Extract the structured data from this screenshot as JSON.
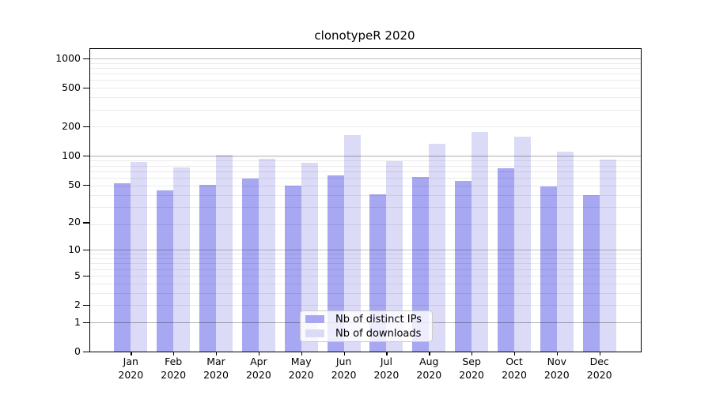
{
  "title": "clonotypeR 2020",
  "chart_data": {
    "type": "bar",
    "title": "clonotypeR 2020",
    "categories": [
      "Jan",
      "Feb",
      "Mar",
      "Apr",
      "May",
      "Jun",
      "Jul",
      "Aug",
      "Sep",
      "Oct",
      "Nov",
      "Dec"
    ],
    "category_year": "2020",
    "series": [
      {
        "name": "Nb of distinct IPs",
        "color": "#a7a7f2",
        "values": [
          52,
          44,
          50,
          58,
          49,
          62,
          40,
          60,
          55,
          74,
          48,
          39
        ]
      },
      {
        "name": "Nb of downloads",
        "color": "#dbdbf8",
        "values": [
          86,
          76,
          103,
          93,
          85,
          162,
          88,
          133,
          177,
          157,
          111,
          91
        ]
      }
    ],
    "yscale": "log(x+1)",
    "ytick_labels": [
      0,
      1,
      2,
      5,
      10,
      20,
      50,
      100,
      200,
      500,
      1000
    ],
    "ylim": [
      0,
      1255
    ],
    "grid": true,
    "legend_position": "lower center"
  },
  "colors": {
    "background": "#ffffff",
    "spine": "#000000",
    "major_grid": "#c4c4c4",
    "minor_grid": "#ebebeb",
    "legend_border": "#cbcbcb"
  }
}
